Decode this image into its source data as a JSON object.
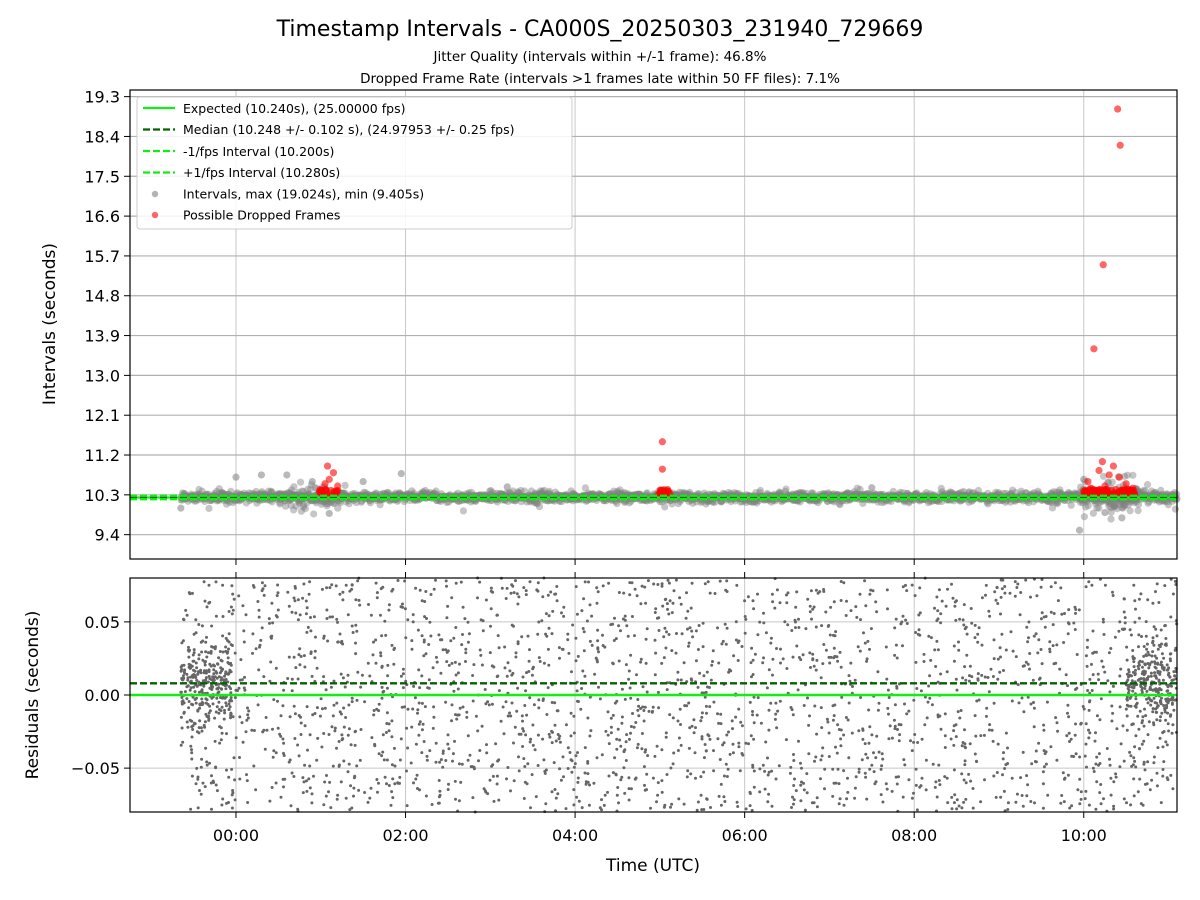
{
  "figure": {
    "title": "Timestamp Intervals - CA000S_20250303_231940_729669",
    "subtitle_1": "Jitter Quality (intervals within +/-1 frame): 46.8%",
    "subtitle_2": "Dropped Frame Rate (intervals >1 frames late within 50 FF files): 7.1%"
  },
  "colors": {
    "expected": "#11ee11",
    "median": "#006400",
    "interval_points": "#808080",
    "dropped_points": "#ff0000",
    "grid": "#b0b0b0"
  },
  "chart_data": [
    {
      "type": "scatter",
      "panel": "intervals",
      "xlabel": "",
      "ylabel": "Intervals (seconds)",
      "x_unit": "hours (UTC) relative to 00:00",
      "xlim": [
        -1.25,
        11.1
      ],
      "ylim": [
        8.85,
        19.45
      ],
      "x_ticks": [
        {
          "value": 0,
          "label": "00:00"
        },
        {
          "value": 2,
          "label": "02:00"
        },
        {
          "value": 4,
          "label": "04:00"
        },
        {
          "value": 6,
          "label": "06:00"
        },
        {
          "value": 8,
          "label": "08:00"
        },
        {
          "value": 10,
          "label": "10:00"
        }
      ],
      "y_ticks": [
        {
          "value": 9.4,
          "label": "9.4"
        },
        {
          "value": 10.3,
          "label": "10.3"
        },
        {
          "value": 11.2,
          "label": "11.2"
        },
        {
          "value": 12.1,
          "label": "12.1"
        },
        {
          "value": 13.0,
          "label": "13.0"
        },
        {
          "value": 13.9,
          "label": "13.9"
        },
        {
          "value": 14.8,
          "label": "14.8"
        },
        {
          "value": 15.7,
          "label": "15.7"
        },
        {
          "value": 16.6,
          "label": "16.6"
        },
        {
          "value": 17.5,
          "label": "17.5"
        },
        {
          "value": 18.4,
          "label": "18.4"
        },
        {
          "value": 19.3,
          "label": "19.3"
        }
      ],
      "grid": true,
      "legend_position": "top-left",
      "legend": [
        {
          "label": "Expected (10.240s), (25.00000 fps)",
          "style": "solid-line",
          "color": "#11ee11"
        },
        {
          "label": "Median (10.248 +/- 0.102 s), (24.97953 +/- 0.25 fps)",
          "style": "dashed-line",
          "color": "#006400"
        },
        {
          "label": "-1/fps Interval (10.200s)",
          "style": "dashed-line",
          "color": "#11ee11"
        },
        {
          "label": "+1/fps Interval (10.280s)",
          "style": "dashed-line",
          "color": "#11ee11"
        },
        {
          "label": "Intervals, max (19.024s), min (9.405s)",
          "style": "marker",
          "color": "#808080"
        },
        {
          "label": "Possible Dropped Frames",
          "style": "marker",
          "color": "#ff0000"
        }
      ],
      "reference_lines": [
        {
          "name": "Expected (10.240s), (25.00000 fps)",
          "y": 10.24,
          "style": "solid"
        },
        {
          "name": "Median (10.248 +/- 0.102 s), (24.97953 +/- 0.25 fps)",
          "y": 10.248,
          "style": "dashed"
        },
        {
          "name": "-1/fps Interval (10.200s)",
          "y": 10.2,
          "style": "dashed"
        },
        {
          "name": "+1/fps Interval (10.280s)",
          "y": 10.28,
          "style": "dashed"
        }
      ],
      "intervals_summary": {
        "x_start": -0.65,
        "x_end": 11.1,
        "center": 10.248,
        "spread": 0.102,
        "max": 19.024,
        "min": 9.405
      },
      "notable_intervals": [
        {
          "x": 0.0,
          "y": 10.7
        },
        {
          "x": 0.3,
          "y": 10.75
        },
        {
          "x": 0.6,
          "y": 10.75
        },
        {
          "x": 0.9,
          "y": 10.6
        },
        {
          "x": 1.1,
          "y": 9.88
        },
        {
          "x": 1.5,
          "y": 10.6
        },
        {
          "x": 1.95,
          "y": 10.78
        },
        {
          "x": -0.65,
          "y": 10.0
        },
        {
          "x": 10.0,
          "y": 10.65
        },
        {
          "x": 9.95,
          "y": 9.5
        },
        {
          "x": 10.25,
          "y": 9.9
        },
        {
          "x": 10.45,
          "y": 9.78
        },
        {
          "x": 3.2,
          "y": 10.48
        },
        {
          "x": 7.5,
          "y": 10.46
        }
      ],
      "dropped_frames": [
        {
          "x": 5.03,
          "y": 11.5
        },
        {
          "x": 5.03,
          "y": 10.88
        },
        {
          "x": 1.08,
          "y": 10.95
        },
        {
          "x": 1.15,
          "y": 10.8
        },
        {
          "x": 1.1,
          "y": 10.65
        },
        {
          "x": 1.05,
          "y": 10.55
        },
        {
          "x": 1.2,
          "y": 10.5
        },
        {
          "x": 1.12,
          "y": 10.4
        },
        {
          "x": 1.18,
          "y": 10.35
        },
        {
          "x": 1.06,
          "y": 10.42
        },
        {
          "x": 1.14,
          "y": 10.3
        },
        {
          "x": 5.0,
          "y": 10.35
        },
        {
          "x": 5.05,
          "y": 10.3
        },
        {
          "x": 5.1,
          "y": 10.38
        },
        {
          "x": 4.98,
          "y": 10.3
        },
        {
          "x": 5.12,
          "y": 10.33
        },
        {
          "x": 10.12,
          "y": 13.6
        },
        {
          "x": 10.23,
          "y": 15.5
        },
        {
          "x": 10.4,
          "y": 19.02
        },
        {
          "x": 10.43,
          "y": 18.2
        },
        {
          "x": 10.22,
          "y": 11.05
        },
        {
          "x": 10.35,
          "y": 10.95
        },
        {
          "x": 10.18,
          "y": 10.85
        },
        {
          "x": 10.3,
          "y": 10.75
        },
        {
          "x": 10.05,
          "y": 10.6
        },
        {
          "x": 10.42,
          "y": 10.7
        },
        {
          "x": 10.5,
          "y": 10.55
        },
        {
          "x": 10.08,
          "y": 10.45
        },
        {
          "x": 10.15,
          "y": 10.4
        },
        {
          "x": 10.25,
          "y": 10.5
        },
        {
          "x": 10.38,
          "y": 10.42
        },
        {
          "x": 10.45,
          "y": 10.38
        },
        {
          "x": 10.55,
          "y": 10.4
        },
        {
          "x": 10.6,
          "y": 10.33
        },
        {
          "x": 10.02,
          "y": 10.35
        },
        {
          "x": 10.28,
          "y": 10.35
        },
        {
          "x": 10.33,
          "y": 10.3
        },
        {
          "x": 10.48,
          "y": 10.32
        },
        {
          "x": 10.1,
          "y": 10.3
        },
        {
          "x": 10.2,
          "y": 10.33
        },
        {
          "x": 10.58,
          "y": 10.45
        }
      ]
    },
    {
      "type": "scatter",
      "panel": "residuals",
      "xlabel": "Time (UTC)",
      "ylabel": "Residuals (seconds)",
      "xlim": [
        -1.25,
        11.1
      ],
      "ylim": [
        -0.08,
        0.08
      ],
      "y_ticks": [
        {
          "value": -0.05,
          "label": "−0.05"
        },
        {
          "value": 0.0,
          "label": "0.00"
        },
        {
          "value": 0.05,
          "label": "0.05"
        }
      ],
      "grid": true,
      "reference_lines": [
        {
          "name": "Expected",
          "y": 0.0,
          "style": "solid"
        },
        {
          "name": "Median",
          "y": 0.008,
          "style": "dashed"
        }
      ],
      "residuals_summary": {
        "x_start": -0.65,
        "x_end": 11.1,
        "dense_bands": [
          {
            "x_from": -0.65,
            "x_to": -0.05,
            "y_center": 0.005,
            "y_spread": 0.03
          },
          {
            "x_from": 10.5,
            "x_to": 11.1,
            "y_center": 0.005,
            "y_spread": 0.03
          }
        ],
        "y_range": [
          -0.08,
          0.08
        ]
      }
    }
  ]
}
